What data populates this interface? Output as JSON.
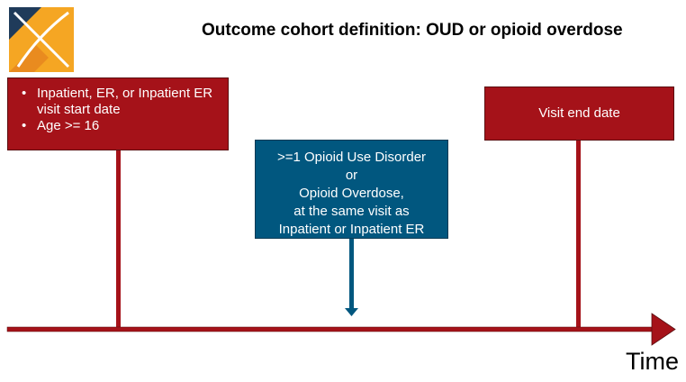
{
  "title": "Outcome cohort definition: OUD or opioid overdose",
  "colors": {
    "red": "#a51219",
    "blue": "#01577f",
    "logo_orange": "#f5a623",
    "logo_navy": "#1f3b5a"
  },
  "icons": {
    "logo": "cross-logo-icon"
  },
  "start_box": {
    "items": [
      "Inpatient, ER, or Inpatient ER visit start date",
      "Age >= 16"
    ]
  },
  "end_box": {
    "label": "Visit end date"
  },
  "event_box": {
    "lines": [
      ">=1 Opioid Use Disorder",
      "or",
      "Opioid Overdose,",
      "at the same visit as",
      "Inpatient or Inpatient ER"
    ]
  },
  "axis_label": "Time"
}
